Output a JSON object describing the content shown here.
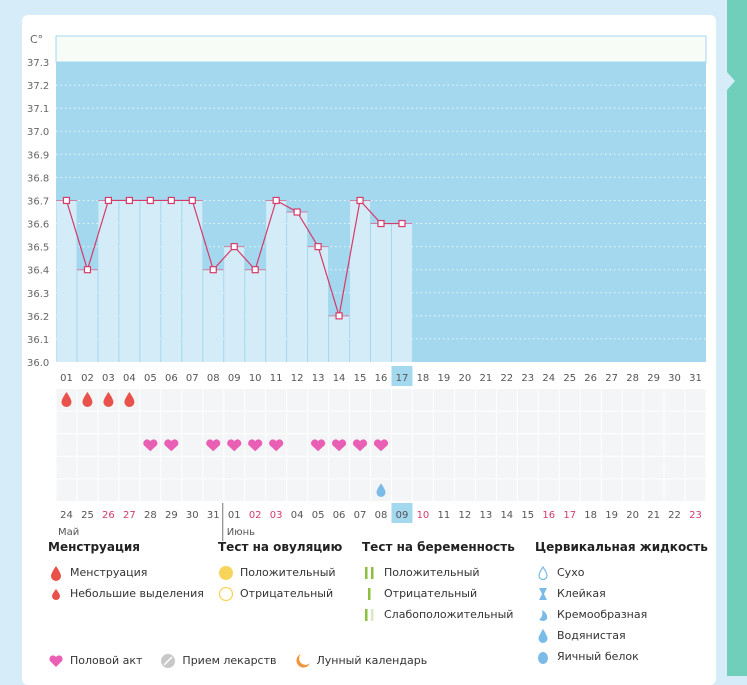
{
  "chart_data": {
    "type": "bar+line",
    "ylabel": "C°",
    "ylim": [
      36.0,
      37.3
    ],
    "yticks": [
      "37.3",
      "37.2",
      "37.1",
      "37.0",
      "36.9",
      "36.8",
      "36.7",
      "36.6",
      "36.5",
      "36.4",
      "36.3",
      "36.2",
      "36.1",
      "36.0"
    ],
    "cycle_days": [
      "01",
      "02",
      "03",
      "04",
      "05",
      "06",
      "07",
      "08",
      "09",
      "10",
      "11",
      "12",
      "13",
      "14",
      "15",
      "16",
      "17",
      "18",
      "19",
      "20",
      "21",
      "22",
      "23",
      "24",
      "25",
      "26",
      "27",
      "28",
      "29",
      "30",
      "31"
    ],
    "current_cycle_day": "17",
    "temperatures": [
      36.7,
      36.4,
      36.7,
      36.7,
      36.7,
      36.7,
      36.7,
      36.4,
      36.5,
      36.4,
      36.7,
      36.65,
      36.5,
      36.2,
      36.7,
      36.6,
      36.6
    ],
    "dates": [
      "24",
      "25",
      "26",
      "27",
      "28",
      "29",
      "30",
      "31",
      "01",
      "02",
      "03",
      "04",
      "05",
      "06",
      "07",
      "08",
      "09",
      "10",
      "11",
      "12",
      "13",
      "14",
      "15",
      "16",
      "17",
      "18",
      "19",
      "20",
      "21",
      "22",
      "23"
    ],
    "weekend_dates_idx": [
      2,
      3,
      9,
      10,
      17,
      23,
      24,
      30
    ],
    "current_date": "09",
    "months": [
      "Май",
      "Июнь"
    ],
    "menstruation_days": [
      1,
      2,
      3,
      4
    ],
    "intercourse_days": [
      5,
      6,
      8,
      9,
      10,
      11,
      13,
      14,
      15,
      16
    ],
    "cervical_fluid": [
      {
        "day": 16,
        "type": "Водянистая"
      }
    ],
    "grid": true
  },
  "colors": {
    "plot_bg": "#a3d8ef",
    "bar": "#d3ecf8",
    "line": "#d63a6a",
    "menstruation": "#e8524a",
    "heart": "#e85fb4",
    "fluid": "#7bbbe8",
    "weekend": "#d63a6a",
    "teal": "#6fcfbb"
  },
  "legend": {
    "menstruation": {
      "title": "Менструация",
      "items": [
        "Менструация",
        "Небольшие выделения"
      ]
    },
    "ovulation": {
      "title": "Тест на овуляцию",
      "items": [
        "Положительный",
        "Отрицательный"
      ]
    },
    "pregnancy": {
      "title": "Тест на беременность",
      "items": [
        "Положительный",
        "Отрицательный",
        "Слабоположительный"
      ]
    },
    "cervical": {
      "title": "Цервикальная жидкость",
      "items": [
        "Сухо",
        "Клейкая",
        "Кремообразная",
        "Водянистая",
        "Яичный белок"
      ]
    },
    "other": [
      "Половой акт",
      "Прием лекарств",
      "Лунный календарь"
    ]
  }
}
